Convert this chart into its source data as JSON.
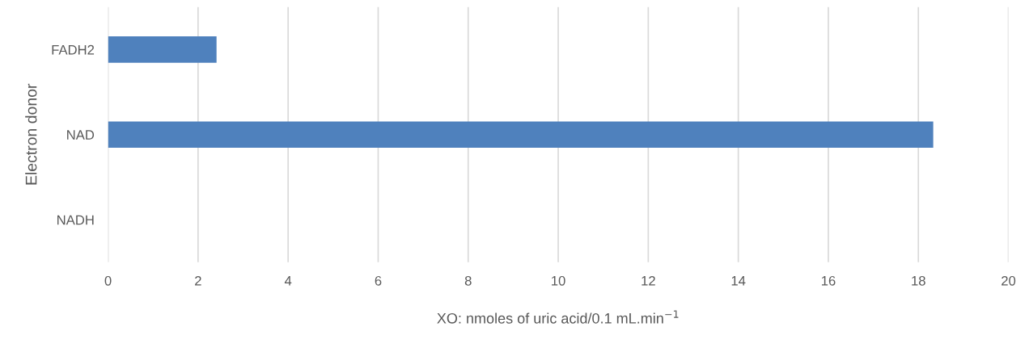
{
  "chart_data": {
    "type": "bar",
    "orientation": "horizontal",
    "categories": [
      "FADH2",
      "NAD",
      "NADH"
    ],
    "series": [
      {
        "color": "#4f81bd",
        "values": [
          2.41,
          18.33,
          0
        ]
      }
    ],
    "xlim": [
      0,
      20
    ],
    "xticks": [
      0,
      2,
      4,
      6,
      8,
      10,
      12,
      14,
      16,
      18,
      20
    ],
    "xlabel": "XO: nmoles of uric acid/0.1 mL.min$^{−1}$",
    "ylabel": "Electron donor",
    "grid": "x",
    "legend": false
  }
}
